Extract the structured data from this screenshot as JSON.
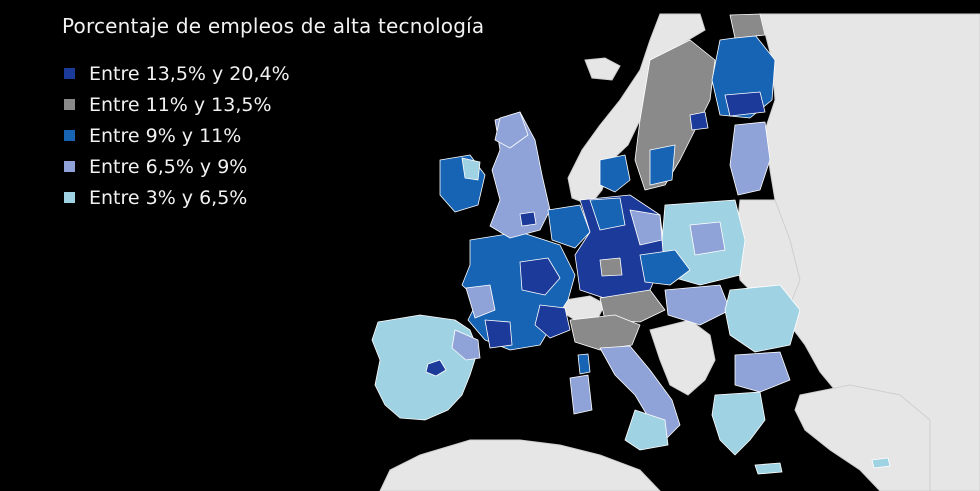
{
  "title": "Porcentaje de empleos de alta tecnología",
  "legend": [
    {
      "label": "Entre 13,5% y 20,4%",
      "color": "#1b3a9a"
    },
    {
      "label": "Entre 11% y 13,5%",
      "color": "#8a8a8a"
    },
    {
      "label": "Entre 9% y 11%",
      "color": "#1864b4"
    },
    {
      "label": "Entre 6,5% y 9%",
      "color": "#8fa3d8"
    },
    {
      "label": "Entre 3% y 6,5%",
      "color": "#9fd2e2"
    }
  ],
  "colors": {
    "background": "#000000",
    "non_data_land": "#e6e6e6",
    "borders": "#ffffff"
  }
}
